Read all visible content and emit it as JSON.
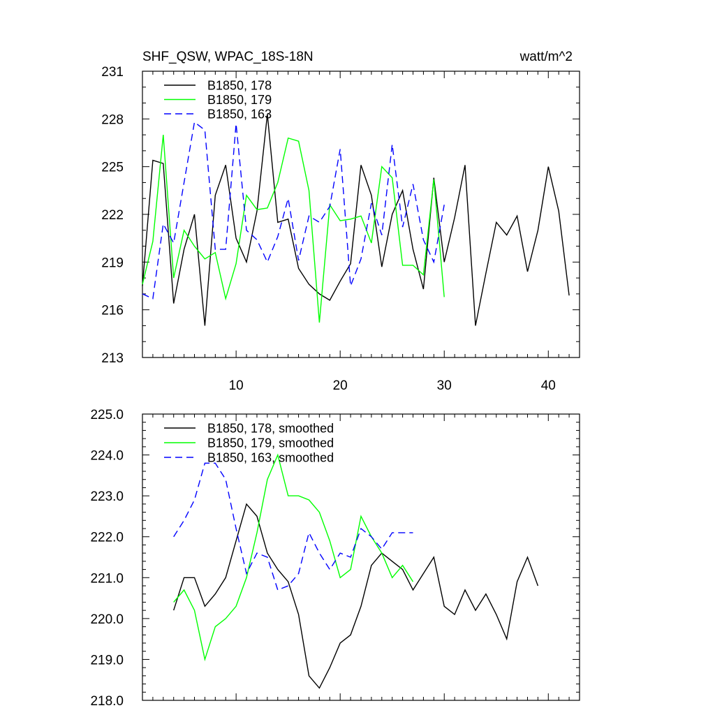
{
  "chart_data": [
    {
      "type": "line",
      "title": "SHF_QSW, WPAC_18S-18N",
      "units": "watt/m^2",
      "xlabel": "",
      "ylabel": "",
      "xlim": [
        1,
        43
      ],
      "ylim": [
        213,
        231
      ],
      "xticks": [
        10,
        20,
        30,
        40
      ],
      "xtick_labels": [
        "10",
        "20",
        "30",
        "40"
      ],
      "yticks": [
        213,
        216,
        219,
        222,
        225,
        228,
        231
      ],
      "ytick_labels": [
        "213",
        "216",
        "219",
        "222",
        "225",
        "228",
        "231"
      ],
      "legend_position": "top-left",
      "series": [
        {
          "name": "B1850, 178",
          "color": "#000000",
          "dash": "solid",
          "x": [
            1,
            2,
            3,
            4,
            5,
            6,
            7,
            8,
            9,
            10,
            11,
            12,
            13,
            14,
            15,
            16,
            17,
            18,
            19,
            20,
            21,
            22,
            23,
            24,
            25,
            26,
            27,
            28,
            29,
            30,
            31,
            32,
            33,
            34,
            35,
            36,
            37,
            38,
            39,
            40,
            41,
            42
          ],
          "values": [
            217.5,
            225.4,
            225.2,
            216.4,
            219.8,
            222.0,
            215.0,
            223.2,
            225.1,
            220.5,
            219.0,
            222.2,
            228.3,
            221.5,
            221.7,
            218.6,
            217.6,
            217.0,
            216.6,
            217.8,
            218.9,
            225.1,
            223.2,
            218.7,
            222.0,
            223.5,
            219.8,
            217.3,
            224.3,
            219.0,
            221.8,
            225.1,
            215.0,
            218.3,
            221.5,
            220.7,
            221.9,
            218.4,
            221.0,
            225.0,
            222.2,
            216.9
          ]
        },
        {
          "name": "B1850, 179",
          "color": "#00ff00",
          "dash": "solid",
          "x": [
            1,
            2,
            3,
            4,
            5,
            6,
            7,
            8,
            9,
            10,
            11,
            12,
            13,
            14,
            15,
            16,
            17,
            18,
            19,
            20,
            21,
            22,
            23,
            24,
            25,
            26,
            27,
            28,
            29,
            30
          ],
          "values": [
            217.6,
            220.3,
            227.0,
            218.0,
            221.0,
            220.0,
            219.2,
            219.6,
            216.7,
            218.9,
            223.2,
            222.3,
            222.4,
            224.0,
            226.8,
            226.6,
            223.5,
            215.2,
            222.6,
            221.6,
            221.7,
            221.9,
            220.2,
            225.0,
            224.3,
            218.8,
            218.8,
            218.2,
            224.2,
            216.8
          ]
        },
        {
          "name": "B1850, 163",
          "color": "#0000ff",
          "dash": "dashed",
          "x": [
            1,
            2,
            3,
            4,
            5,
            6,
            7,
            8,
            9,
            10,
            11,
            12,
            13,
            14,
            15,
            16,
            17,
            18,
            19,
            20,
            21,
            22,
            23,
            24,
            25,
            26,
            27,
            28,
            29,
            30
          ],
          "values": [
            217.0,
            216.7,
            221.4,
            220.2,
            224.0,
            227.8,
            227.3,
            219.8,
            219.8,
            227.7,
            221.0,
            220.4,
            219.0,
            220.6,
            223.0,
            219.1,
            221.9,
            221.5,
            222.5,
            226.1,
            217.5,
            219.2,
            222.7,
            220.7,
            226.4,
            221.2,
            223.9,
            220.4,
            219.0,
            222.6
          ]
        }
      ]
    },
    {
      "type": "line",
      "title": "",
      "xlabel": "",
      "ylabel": "",
      "xlim": [
        1,
        43
      ],
      "ylim": [
        218.0,
        225.0
      ],
      "xticks": [
        10,
        20,
        30,
        40
      ],
      "xtick_labels": [],
      "yticks": [
        218.0,
        219.0,
        220.0,
        221.0,
        222.0,
        223.0,
        224.0,
        225.0
      ],
      "ytick_labels": [
        "218.0",
        "219.0",
        "220.0",
        "221.0",
        "222.0",
        "223.0",
        "224.0",
        "225.0"
      ],
      "legend_position": "top-left",
      "series": [
        {
          "name": "B1850, 178, smoothed",
          "color": "#000000",
          "dash": "solid",
          "x": [
            4,
            5,
            6,
            7,
            8,
            9,
            10,
            11,
            12,
            13,
            14,
            15,
            16,
            17,
            18,
            19,
            20,
            21,
            22,
            23,
            24,
            25,
            26,
            27,
            28,
            29,
            30,
            31,
            32,
            33,
            34,
            35,
            36,
            37,
            38,
            39
          ],
          "values": [
            220.2,
            221.0,
            221.0,
            220.3,
            220.6,
            221.0,
            221.9,
            222.8,
            222.5,
            221.6,
            221.2,
            220.9,
            220.1,
            218.6,
            218.3,
            218.8,
            219.4,
            219.6,
            220.3,
            221.3,
            221.6,
            221.4,
            221.2,
            220.7,
            221.1,
            221.5,
            220.3,
            220.1,
            220.7,
            220.2,
            220.6,
            220.1,
            219.5,
            220.9,
            221.5,
            220.8
          ]
        },
        {
          "name": "B1850, 179, smoothed",
          "color": "#00ff00",
          "dash": "solid",
          "x": [
            4,
            5,
            6,
            7,
            8,
            9,
            10,
            11,
            12,
            13,
            14,
            15,
            16,
            17,
            18,
            19,
            20,
            21,
            22,
            23,
            24,
            25,
            26,
            27
          ],
          "values": [
            220.4,
            220.7,
            220.2,
            219.0,
            219.8,
            220.0,
            220.3,
            221.0,
            222.1,
            223.4,
            224.0,
            223.0,
            223.0,
            222.9,
            222.6,
            221.9,
            221.0,
            221.2,
            222.5,
            222.0,
            221.6,
            221.0,
            221.3,
            220.9
          ]
        },
        {
          "name": "B1850, 163, smoothed",
          "color": "#0000ff",
          "dash": "dashed",
          "x": [
            4,
            5,
            6,
            7,
            8,
            9,
            10,
            11,
            12,
            13,
            14,
            15,
            16,
            17,
            18,
            19,
            20,
            21,
            22,
            23,
            24,
            25,
            26,
            27
          ],
          "values": [
            222.0,
            222.4,
            222.9,
            223.8,
            223.8,
            223.4,
            222.2,
            221.1,
            221.6,
            221.5,
            220.7,
            220.8,
            221.1,
            222.1,
            221.6,
            221.2,
            221.6,
            221.5,
            222.2,
            222.0,
            221.7,
            222.1,
            222.1,
            222.1
          ]
        }
      ]
    }
  ]
}
